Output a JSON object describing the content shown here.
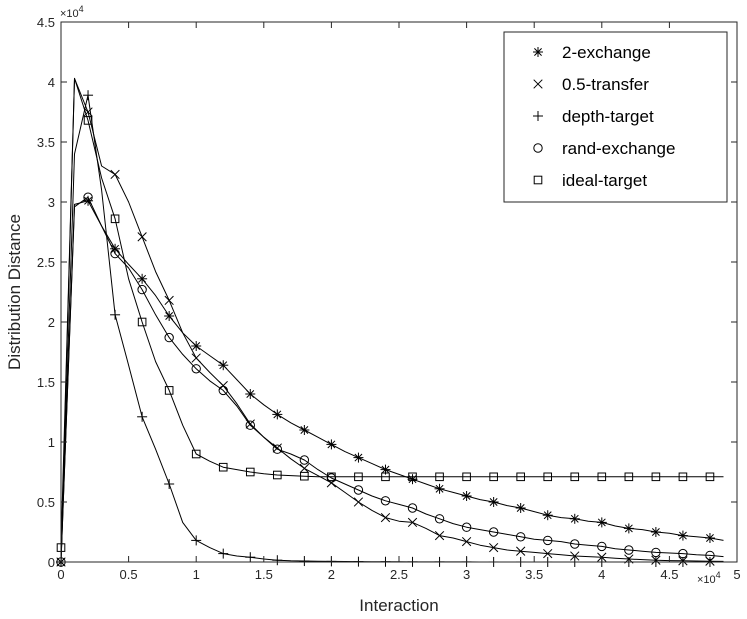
{
  "chart_data": {
    "type": "line",
    "title": "",
    "xlabel": "Interaction",
    "ylabel": "Distribution Distance",
    "x_multiplier_label": "×10",
    "x_multiplier_exp": "4",
    "y_multiplier_label": "×10",
    "y_multiplier_exp": "4",
    "xlim": [
      0,
      50000
    ],
    "ylim": [
      0,
      45000
    ],
    "x_ticks": [
      0,
      5000,
      10000,
      15000,
      20000,
      25000,
      30000,
      35000,
      40000,
      45000,
      50000
    ],
    "x_tick_labels": [
      "0",
      "0.5",
      "1",
      "1.5",
      "2",
      "2.5",
      "3",
      "3.5",
      "4",
      "4.5",
      "5"
    ],
    "y_ticks": [
      0,
      5000,
      10000,
      15000,
      20000,
      25000,
      30000,
      35000,
      40000,
      45000
    ],
    "y_tick_labels": [
      "0",
      "0.5",
      "1",
      "1.5",
      "2",
      "2.5",
      "3",
      "3.5",
      "4",
      "4.5"
    ],
    "grid": false,
    "legend_position": "top-right",
    "series": [
      {
        "name": "2-exchange",
        "marker": "asterisk",
        "line_x": [
          0,
          1000,
          2000,
          3000,
          4000,
          5000,
          6000,
          7000,
          8000,
          9000,
          10000,
          11000,
          12000,
          13000,
          14000,
          15000,
          16000,
          17000,
          18000,
          19000,
          20000,
          21000,
          22000,
          23000,
          24000,
          25000,
          26000,
          27000,
          28000,
          29000,
          30000,
          31000,
          32000,
          33000,
          34000,
          35000,
          36000,
          37000,
          38000,
          39000,
          40000,
          41000,
          42000,
          43000,
          44000,
          45000,
          46000,
          47000,
          48000,
          49000
        ],
        "line_y": [
          0,
          29800,
          30100,
          28000,
          26100,
          24800,
          23600,
          22200,
          20500,
          19100,
          18000,
          17200,
          16400,
          15200,
          14000,
          13100,
          12300,
          11600,
          11000,
          10400,
          9800,
          9200,
          8700,
          8200,
          7700,
          7300,
          6900,
          6500,
          6100,
          5800,
          5500,
          5200,
          5000,
          4700,
          4500,
          4200,
          3900,
          3700,
          3600,
          3400,
          3300,
          3000,
          2800,
          2700,
          2500,
          2400,
          2200,
          2100,
          2000,
          1800
        ],
        "marker_x": [
          0,
          2000,
          4000,
          6000,
          8000,
          10000,
          12000,
          14000,
          16000,
          18000,
          20000,
          22000,
          24000,
          26000,
          28000,
          30000,
          32000,
          34000,
          36000,
          38000,
          40000,
          42000,
          44000,
          46000,
          48000
        ],
        "marker_y": [
          0,
          30100,
          26100,
          23600,
          20500,
          18000,
          16400,
          14000,
          12300,
          11000,
          9800,
          8700,
          7700,
          6900,
          6100,
          5500,
          5000,
          4500,
          3900,
          3600,
          3300,
          2800,
          2500,
          2200,
          2000
        ]
      },
      {
        "name": "0.5-transfer",
        "marker": "cross",
        "line_x": [
          0,
          1000,
          2000,
          3000,
          4000,
          5000,
          6000,
          7000,
          8000,
          9000,
          10000,
          11000,
          12000,
          13000,
          14000,
          15000,
          16000,
          17000,
          18000,
          19000,
          20000,
          21000,
          22000,
          23000,
          24000,
          25000,
          26000,
          27000,
          28000,
          29000,
          30000,
          31000,
          32000,
          33000,
          34000,
          35000,
          36000,
          37000,
          38000,
          39000,
          40000,
          41000,
          42000,
          43000,
          44000,
          45000,
          46000,
          47000,
          48000,
          49000
        ],
        "line_y": [
          0,
          40300,
          37500,
          33000,
          32300,
          30000,
          27100,
          24200,
          21800,
          19100,
          17000,
          15800,
          14700,
          13200,
          11500,
          10400,
          9500,
          8600,
          7800,
          7200,
          6600,
          5800,
          5000,
          4300,
          3700,
          3400,
          3300,
          2800,
          2200,
          2000,
          1700,
          1400,
          1200,
          1000,
          900,
          800,
          700,
          600,
          500,
          450,
          400,
          320,
          250,
          200,
          150,
          120,
          100,
          80,
          70,
          50
        ],
        "marker_x": [
          0,
          2000,
          4000,
          6000,
          8000,
          10000,
          12000,
          14000,
          16000,
          18000,
          20000,
          22000,
          24000,
          26000,
          28000,
          30000,
          32000,
          34000,
          36000,
          38000,
          40000,
          42000,
          44000,
          46000,
          48000
        ],
        "marker_y": [
          0,
          37500,
          32300,
          27100,
          21800,
          17000,
          14700,
          11500,
          9500,
          7800,
          6600,
          5000,
          3700,
          3300,
          2200,
          1700,
          1200,
          900,
          700,
          500,
          400,
          250,
          150,
          100,
          70
        ]
      },
      {
        "name": "depth-target",
        "marker": "plus",
        "line_x": [
          0,
          1000,
          2000,
          3000,
          4000,
          5000,
          6000,
          7000,
          8000,
          9000,
          10000,
          11000,
          12000,
          13000,
          14000,
          15000,
          16000,
          17000,
          18000,
          19000,
          20000,
          21000,
          22000,
          23000,
          24000,
          25000,
          26000,
          27000,
          28000,
          29000,
          30000,
          31000,
          32000,
          33000,
          34000,
          35000,
          36000,
          37000,
          38000,
          39000,
          40000,
          41000,
          42000,
          43000,
          44000,
          45000,
          46000,
          47000,
          48000,
          49000
        ],
        "line_y": [
          0,
          34000,
          38900,
          31000,
          20600,
          16400,
          12100,
          9400,
          6500,
          3300,
          1800,
          1200,
          700,
          500,
          400,
          250,
          150,
          100,
          80,
          60,
          50,
          40,
          30,
          25,
          20,
          15,
          10,
          10,
          8,
          6,
          5,
          4,
          3,
          3,
          2,
          2,
          2,
          1,
          1,
          1,
          1,
          1,
          1,
          0,
          0,
          0,
          0,
          0,
          0,
          0
        ],
        "marker_x": [
          0,
          2000,
          4000,
          6000,
          8000,
          10000,
          12000,
          14000,
          16000,
          18000,
          20000,
          22000,
          24000,
          26000,
          28000,
          30000,
          32000,
          34000,
          36000,
          38000,
          40000,
          42000,
          44000,
          46000,
          48000
        ],
        "marker_y": [
          0,
          38900,
          20600,
          12100,
          6500,
          1800,
          700,
          400,
          150,
          80,
          50,
          30,
          20,
          10,
          8,
          5,
          3,
          2,
          2,
          1,
          1,
          1,
          0,
          0,
          0
        ]
      },
      {
        "name": "rand-exchange",
        "marker": "circle",
        "line_x": [
          0,
          1000,
          2000,
          3000,
          4000,
          5000,
          6000,
          7000,
          8000,
          9000,
          10000,
          11000,
          12000,
          13000,
          14000,
          15000,
          16000,
          17000,
          18000,
          19000,
          20000,
          21000,
          22000,
          23000,
          24000,
          25000,
          26000,
          27000,
          28000,
          29000,
          30000,
          31000,
          32000,
          33000,
          34000,
          35000,
          36000,
          37000,
          38000,
          39000,
          40000,
          41000,
          42000,
          43000,
          44000,
          45000,
          46000,
          47000,
          48000,
          49000
        ],
        "line_y": [
          0,
          29600,
          30400,
          28000,
          25700,
          24500,
          22700,
          20600,
          18700,
          17300,
          16100,
          15100,
          14300,
          13000,
          11400,
          10400,
          9400,
          9000,
          8500,
          7700,
          7000,
          6500,
          6000,
          5500,
          5100,
          4800,
          4500,
          4000,
          3600,
          3200,
          2900,
          2700,
          2500,
          2300,
          2100,
          1900,
          1800,
          1700,
          1500,
          1400,
          1300,
          1100,
          1000,
          900,
          800,
          750,
          700,
          600,
          550,
          450
        ],
        "marker_x": [
          0,
          2000,
          4000,
          6000,
          8000,
          10000,
          12000,
          14000,
          16000,
          18000,
          20000,
          22000,
          24000,
          26000,
          28000,
          30000,
          32000,
          34000,
          36000,
          38000,
          40000,
          42000,
          44000,
          46000,
          48000
        ],
        "marker_y": [
          0,
          30400,
          25700,
          22700,
          18700,
          16100,
          14300,
          11400,
          9400,
          8500,
          7000,
          6000,
          5100,
          4500,
          3600,
          2900,
          2500,
          2100,
          1800,
          1500,
          1300,
          1000,
          800,
          700,
          550
        ]
      },
      {
        "name": "ideal-target",
        "marker": "square",
        "line_x": [
          0,
          1000,
          2000,
          3000,
          4000,
          5000,
          6000,
          7000,
          8000,
          9000,
          10000,
          11000,
          12000,
          13000,
          14000,
          15000,
          16000,
          17000,
          18000,
          19000,
          20000,
          21000,
          22000,
          23000,
          24000,
          25000,
          26000,
          27000,
          28000,
          29000,
          30000,
          31000,
          32000,
          33000,
          34000,
          35000,
          36000,
          37000,
          38000,
          39000,
          40000,
          41000,
          42000,
          43000,
          44000,
          45000,
          46000,
          47000,
          48000,
          49000
        ],
        "line_y": [
          1200,
          40300,
          36800,
          32000,
          28600,
          23600,
          20000,
          16700,
          14300,
          11400,
          9000,
          8400,
          7900,
          7700,
          7500,
          7350,
          7250,
          7200,
          7150,
          7100,
          7100,
          7100,
          7100,
          7100,
          7100,
          7100,
          7100,
          7100,
          7100,
          7100,
          7100,
          7100,
          7100,
          7100,
          7100,
          7100,
          7100,
          7100,
          7100,
          7100,
          7100,
          7100,
          7100,
          7100,
          7100,
          7100,
          7100,
          7100,
          7100,
          7100
        ],
        "marker_x": [
          0,
          2000,
          4000,
          6000,
          8000,
          10000,
          12000,
          14000,
          16000,
          18000,
          20000,
          22000,
          24000,
          26000,
          28000,
          30000,
          32000,
          34000,
          36000,
          38000,
          40000,
          42000,
          44000,
          46000,
          48000
        ],
        "marker_y": [
          1200,
          36800,
          28600,
          20000,
          14300,
          9000,
          7900,
          7500,
          7250,
          7150,
          7100,
          7100,
          7100,
          7100,
          7100,
          7100,
          7100,
          7100,
          7100,
          7100,
          7100,
          7100,
          7100,
          7100,
          7100
        ]
      }
    ]
  }
}
